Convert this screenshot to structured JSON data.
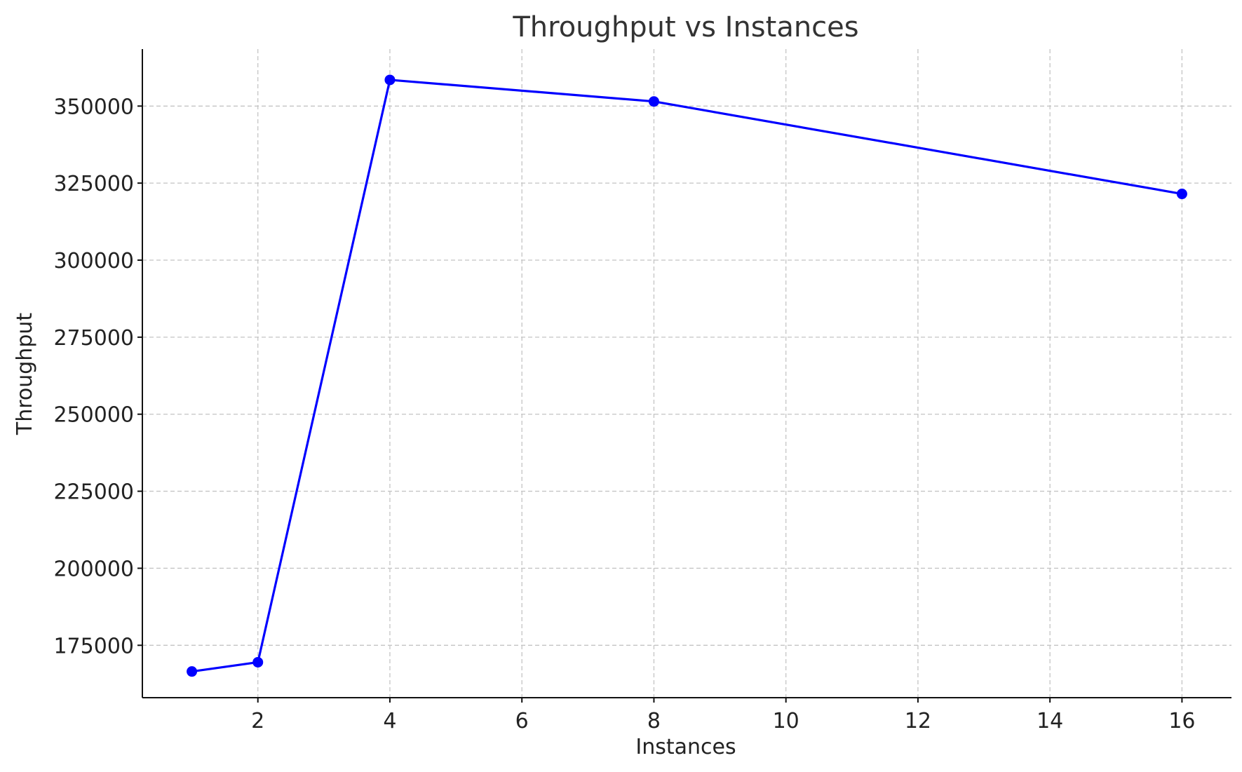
{
  "chart_data": {
    "type": "line",
    "title": "Throughput vs Instances",
    "xlabel": "Instances",
    "ylabel": "Throughput",
    "x": [
      1,
      2,
      4,
      8,
      16
    ],
    "series": [
      {
        "values": [
          166500,
          169500,
          358500,
          351500,
          321500
        ],
        "color": "#0000ff",
        "marker": "circle"
      }
    ],
    "xlim": [
      0.25,
      16.75
    ],
    "ylim": [
      158000,
      368500
    ],
    "xticks": [
      2,
      4,
      6,
      8,
      10,
      12,
      14,
      16
    ],
    "yticks": [
      175000,
      200000,
      225000,
      250000,
      275000,
      300000,
      325000,
      350000
    ],
    "grid": true,
    "grid_style": "dashed"
  }
}
